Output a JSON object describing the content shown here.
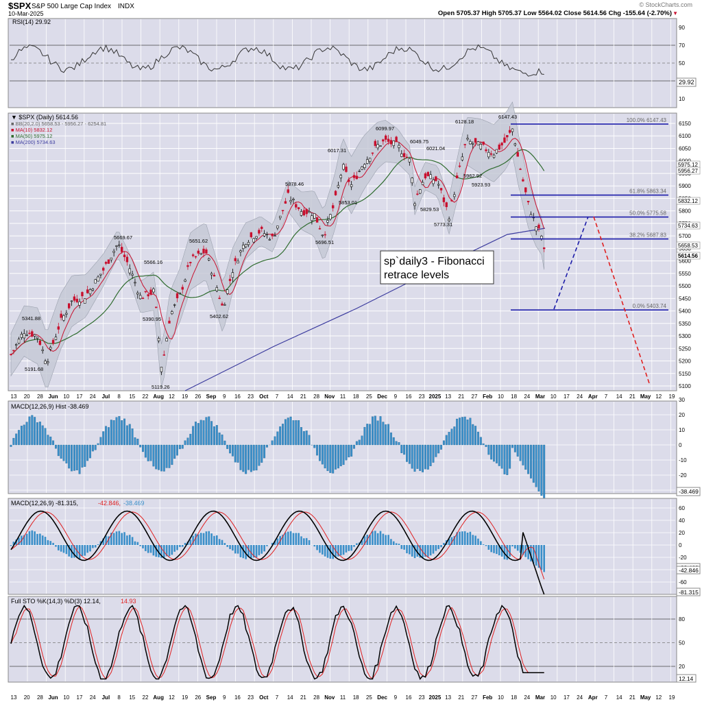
{
  "header": {
    "symbol": "$SPX",
    "name": "S&P 500 Large Cap Index",
    "exchange": "INDX",
    "date": "10-Mar-2025",
    "ohlc": "Open 5705.37  High 5705.37  Low 5564.02  Close 5614.56  Chg -155.64 (-2.70%)",
    "chg_marker": "▼",
    "watermark": "© StockCharts.com"
  },
  "colors": {
    "panel_bg": "#dcdcea",
    "grid": "#ffffff",
    "up": "#000000",
    "down": "#c8102e",
    "ma_fast": "#c8102e",
    "ma_mid": "#2e6b2e",
    "ma_slow": "#3b3b9e",
    "fib_line": "#1a1aa8",
    "hist": "#3a8fc9",
    "projection_up": "#1a1aa8",
    "projection_down": "#e02020"
  },
  "rsi": {
    "label": "RSI(14) 29.92",
    "value_label": "29.92",
    "ticks": [
      "90",
      "70",
      "50",
      "30",
      "10"
    ]
  },
  "price_panel": {
    "legend": [
      "▼ $SPX (Daily) 5614.56",
      "■ BB(20,2.0) 5658.53 - 5956.27 - 6254.81",
      "■ MA(10) 5832.12",
      "■ MA(50) 5975.12",
      "■ MA(200) 5734.63"
    ],
    "y_ticks": [
      "6150",
      "6100",
      "6050",
      "6000",
      "5950",
      "5900",
      "5850",
      "5800",
      "5750",
      "5700",
      "5650",
      "5600",
      "5550",
      "5500",
      "5450",
      "5400",
      "5350",
      "5300",
      "5250",
      "5200",
      "5150",
      "5100"
    ],
    "right_labels": [
      "5975.12",
      "5956.27",
      "5832.12",
      "5734.63",
      "5658.53",
      "5614.56"
    ],
    "annotation": [
      "sp`daily3 - Fibonacci",
      "retrace levels"
    ],
    "fib_labels": [
      "100.0% 6147.43",
      "61.8% 5863.34",
      "50.0% 5775.58",
      "38.2% 5687.83",
      "0.0% 5403.74"
    ],
    "price_labels": [
      "5341.88",
      "5191.68",
      "5669.67",
      "5566.16",
      "5390.95",
      "5119.26",
      "5651.62",
      "5402.62",
      "5878.46",
      "5696.51",
      "6017.31",
      "5853.01",
      "6099.97",
      "6049.75",
      "6021.04",
      "5829.53",
      "5773.31",
      "6128.18",
      "5962.92",
      "5923.93",
      "6147.43"
    ]
  },
  "x_axis_labels": [
    "13",
    "20",
    "28",
    "Jun",
    "10",
    "17",
    "24",
    "Jul",
    "8",
    "15",
    "22",
    "Aug",
    "12",
    "19",
    "26",
    "Sep",
    "9",
    "16",
    "23",
    "Oct",
    "7",
    "14",
    "21",
    "28",
    "Nov",
    "11",
    "18",
    "25",
    "Dec",
    "9",
    "16",
    "23",
    "2025",
    "13",
    "21",
    "27",
    "Feb",
    "10",
    "18",
    "24",
    "Mar",
    "10",
    "17",
    "24",
    "Apr",
    "7",
    "14",
    "21",
    "May",
    "12",
    "19"
  ],
  "macd_hist": {
    "label": "MACD(12,26,9) Hist -38.469",
    "value_label": "-38.469",
    "ticks": [
      "30",
      "20",
      "10",
      "0",
      "-10",
      "-20",
      "-30"
    ]
  },
  "macd": {
    "label_a": "MACD(12,26,9) -81.315,",
    "label_b": "-42.846,",
    "label_c": "-38.469",
    "values": [
      "-38.469",
      "-42.846",
      "-81.315"
    ],
    "ticks": [
      "60",
      "40",
      "20",
      "0",
      "-20",
      "-40",
      "-60"
    ]
  },
  "sto": {
    "label_a": "Full STO %K(14,3) %D(3) 12.14,",
    "label_b": "14.93",
    "value_label": "12.14",
    "ticks": [
      "80",
      "50",
      "20"
    ]
  },
  "chart_data": {
    "type": "line",
    "title": "$SPX (Daily) 5614.56",
    "x": [
      "Mar 10 2025"
    ],
    "series": [
      {
        "name": "$SPX Close",
        "values": [
          5614.56
        ]
      },
      {
        "name": "MA(10)",
        "values": [
          5832.12
        ]
      },
      {
        "name": "MA(50)",
        "values": [
          5975.12
        ]
      },
      {
        "name": "MA(200)",
        "values": [
          5734.63
        ]
      }
    ],
    "fibonacci": [
      {
        "level": "100.0%",
        "price": 6147.43
      },
      {
        "level": "61.8%",
        "price": 5863.34
      },
      {
        "level": "50.0%",
        "price": 5775.58
      },
      {
        "level": "38.2%",
        "price": 5687.83
      },
      {
        "level": "0.0%",
        "price": 5403.74
      }
    ],
    "ylim": [
      5100,
      6150
    ],
    "indicators": {
      "RSI(14)": 29.92,
      "MACD": -81.315,
      "MACD signal": -42.846,
      "MACD hist": -38.469,
      "STO %K": 12.14,
      "STO %D": 14.93
    }
  }
}
